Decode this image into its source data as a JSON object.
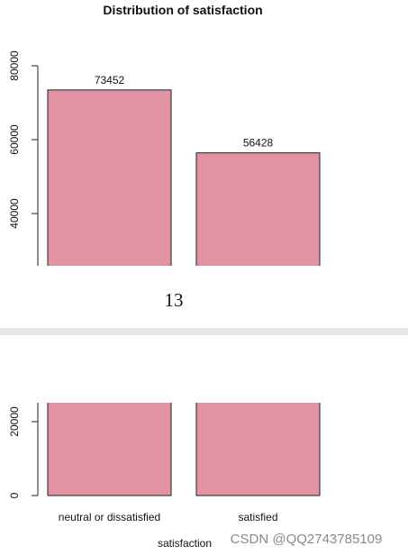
{
  "chart_data": {
    "type": "bar",
    "title": "Distribution of satisfaction",
    "x_label": "satisfaction",
    "categories": [
      "neutral or dissatisfied",
      "satisfied"
    ],
    "values": [
      73452,
      56428
    ],
    "color": "#e193a3",
    "ylim": [
      0,
      80000
    ],
    "yticks": [
      0,
      20000,
      40000,
      60000,
      80000
    ]
  },
  "page_number": "13",
  "watermark": "CSDN @QQ2743785109"
}
